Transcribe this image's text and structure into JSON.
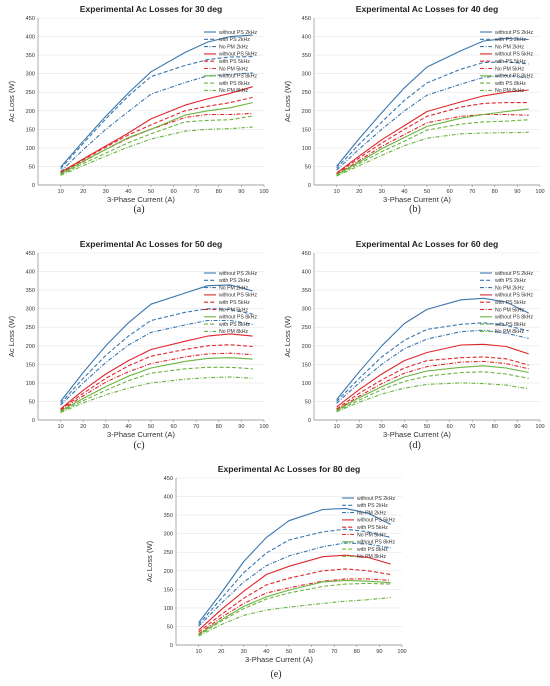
{
  "legend_style": [
    {
      "color": "#3a76ae",
      "dash": "solid"
    },
    {
      "color": "#3a76ae",
      "dash": "dash"
    },
    {
      "color": "#3a76ae",
      "dash": "dashdot"
    },
    {
      "color": "#e0262c",
      "dash": "solid"
    },
    {
      "color": "#e0262c",
      "dash": "dash"
    },
    {
      "color": "#e0262c",
      "dash": "dashdot"
    },
    {
      "color": "#6ab440",
      "dash": "solid"
    },
    {
      "color": "#6ab440",
      "dash": "dash"
    },
    {
      "color": "#6ab440",
      "dash": "dashdot"
    }
  ],
  "captions": [
    "(a)",
    "(b)",
    "(c)",
    "(d)",
    "(e)"
  ],
  "chart_data": [
    {
      "type": "line",
      "title": "Experimental Ac Losses for 30 deg",
      "xlabel": "3-Phase Current (A)",
      "ylabel": "Ac Loss (W)",
      "xlim": [
        0,
        100
      ],
      "ylim": [
        0,
        450
      ],
      "xticks": [
        10,
        20,
        30,
        40,
        50,
        60,
        70,
        80,
        90,
        100
      ],
      "yticks": [
        0,
        50,
        100,
        150,
        200,
        250,
        300,
        350,
        400,
        450
      ],
      "x": [
        10,
        20,
        30,
        40,
        50,
        65,
        75,
        85,
        95
      ],
      "series": [
        {
          "name": "without PS 2kHz",
          "values": [
            48,
            118,
            185,
            248,
            305,
            357,
            385,
            400,
            404
          ]
        },
        {
          "name": "with PS 2kHz",
          "values": [
            44,
            112,
            178,
            240,
            292,
            322,
            338,
            345,
            346
          ]
        },
        {
          "name": "No PM 2kHz",
          "values": [
            36,
            95,
            150,
            198,
            245,
            276,
            294,
            298,
            302
          ]
        },
        {
          "name": "without PS 5kHz",
          "values": [
            34,
            70,
            105,
            140,
            178,
            215,
            232,
            247,
            265
          ]
        },
        {
          "name": "with PS 5kHz",
          "values": [
            32,
            68,
            102,
            135,
            162,
            200,
            212,
            222,
            236
          ]
        },
        {
          "name": "No PM 5kHz",
          "values": [
            30,
            63,
            96,
            126,
            150,
            182,
            190,
            190,
            193
          ]
        },
        {
          "name": "without PS 8kHz",
          "values": [
            30,
            64,
            96,
            128,
            150,
            188,
            200,
            208,
            222
          ]
        },
        {
          "name": "with PS 8kHz",
          "values": [
            28,
            58,
            86,
            114,
            138,
            170,
            174,
            176,
            186
          ]
        },
        {
          "name": "No PM 8kHz",
          "values": [
            26,
            52,
            78,
            102,
            124,
            145,
            150,
            152,
            156
          ]
        }
      ]
    },
    {
      "type": "line",
      "title": "Experimental Ac Losses for 40 deg",
      "xlabel": "3-Phase Current (A)",
      "ylabel": "Ac Loss (W)",
      "xlim": [
        0,
        100
      ],
      "ylim": [
        0,
        450
      ],
      "xticks": [
        10,
        20,
        30,
        40,
        50,
        60,
        70,
        80,
        90,
        100
      ],
      "yticks": [
        0,
        50,
        100,
        150,
        200,
        250,
        300,
        350,
        400,
        450
      ],
      "x": [
        10,
        20,
        30,
        40,
        50,
        65,
        75,
        85,
        95
      ],
      "series": [
        {
          "name": "without PS 2kHz",
          "values": [
            50,
            125,
            195,
            262,
            318,
            362,
            388,
            395,
            392
          ]
        },
        {
          "name": "with PS 2kHz",
          "values": [
            45,
            110,
            170,
            228,
            275,
            312,
            330,
            332,
            326
          ]
        },
        {
          "name": "No PM 2kHz",
          "values": [
            40,
            97,
            150,
            200,
            242,
            272,
            290,
            296,
            288
          ]
        },
        {
          "name": "without PS 5kHz",
          "values": [
            32,
            78,
            122,
            160,
            198,
            224,
            240,
            250,
            256
          ]
        },
        {
          "name": "with PS 5kHz",
          "values": [
            30,
            73,
            113,
            150,
            185,
            210,
            220,
            222,
            222
          ]
        },
        {
          "name": "No PM 5kHz",
          "values": [
            28,
            66,
            104,
            136,
            168,
            185,
            190,
            190,
            188
          ]
        },
        {
          "name": "without PS 8kHz",
          "values": [
            28,
            62,
            98,
            128,
            158,
            180,
            190,
            198,
            205
          ]
        },
        {
          "name": "with PS 8kHz",
          "values": [
            26,
            58,
            90,
            118,
            148,
            164,
            170,
            172,
            176
          ]
        },
        {
          "name": "No PM 8kHz",
          "values": [
            24,
            52,
            80,
            106,
            126,
            138,
            140,
            141,
            142
          ]
        }
      ]
    },
    {
      "type": "line",
      "title": "Experimental Ac Losses for 50 deg",
      "xlabel": "3-Phase Current (A)",
      "ylabel": "Ac Loss (W)",
      "xlim": [
        0,
        100
      ],
      "ylim": [
        0,
        450
      ],
      "xticks": [
        10,
        20,
        30,
        40,
        50,
        60,
        70,
        80,
        90,
        100
      ],
      "yticks": [
        0,
        50,
        100,
        150,
        200,
        250,
        300,
        350,
        400,
        450
      ],
      "x": [
        10,
        20,
        30,
        40,
        50,
        65,
        75,
        85,
        95
      ],
      "series": [
        {
          "name": "without PS 2kHz",
          "values": [
            50,
            128,
            200,
            262,
            312,
            342,
            362,
            364,
            348
          ]
        },
        {
          "name": "with PS 2kHz",
          "values": [
            45,
            112,
            174,
            226,
            268,
            290,
            300,
            298,
            285
          ]
        },
        {
          "name": "No PM 2kHz",
          "values": [
            40,
            100,
            155,
            202,
            236,
            256,
            268,
            268,
            258
          ]
        },
        {
          "name": "without PS 5kHz",
          "values": [
            30,
            80,
            124,
            160,
            190,
            212,
            226,
            232,
            226
          ]
        },
        {
          "name": "with PS 5kHz",
          "values": [
            28,
            72,
            112,
            146,
            172,
            190,
            200,
            203,
            198
          ]
        },
        {
          "name": "No PM 5kHz",
          "values": [
            26,
            65,
            102,
            130,
            152,
            170,
            178,
            180,
            176
          ]
        },
        {
          "name": "without PS 8kHz",
          "values": [
            24,
            58,
            90,
            118,
            140,
            158,
            166,
            168,
            164
          ]
        },
        {
          "name": "with PS 8kHz",
          "values": [
            22,
            52,
            80,
            106,
            126,
            138,
            142,
            142,
            138
          ]
        },
        {
          "name": "No PM 8kHz",
          "values": [
            20,
            46,
            68,
            86,
            100,
            110,
            114,
            116,
            112
          ]
        }
      ]
    },
    {
      "type": "line",
      "title": "Experimental Ac Losses for 60 deg",
      "xlabel": "3-Phase Current (A)",
      "ylabel": "Ac Loss (W)",
      "xlim": [
        0,
        100
      ],
      "ylim": [
        0,
        450
      ],
      "xticks": [
        10,
        20,
        30,
        40,
        50,
        60,
        70,
        80,
        90,
        100
      ],
      "yticks": [
        0,
        50,
        100,
        150,
        200,
        250,
        300,
        350,
        400,
        450
      ],
      "x": [
        10,
        20,
        30,
        40,
        50,
        65,
        75,
        85,
        95
      ],
      "series": [
        {
          "name": "without PS 2kHz",
          "values": [
            55,
            130,
            200,
            260,
            298,
            324,
            328,
            318,
            288
          ]
        },
        {
          "name": "with PS 2kHz",
          "values": [
            50,
            112,
            170,
            215,
            244,
            258,
            262,
            255,
            240
          ]
        },
        {
          "name": "No PM 2kHz",
          "values": [
            45,
            100,
            150,
            192,
            218,
            238,
            242,
            234,
            220
          ]
        },
        {
          "name": "without PS 5kHz",
          "values": [
            35,
            82,
            124,
            160,
            182,
            202,
            204,
            198,
            178
          ]
        },
        {
          "name": "with PS 5kHz",
          "values": [
            30,
            72,
            108,
            140,
            160,
            168,
            170,
            165,
            148
          ]
        },
        {
          "name": "No PM 5kHz",
          "values": [
            28,
            64,
            98,
            126,
            144,
            156,
            158,
            152,
            138
          ]
        },
        {
          "name": "without PS 8kHz",
          "values": [
            26,
            60,
            90,
            116,
            132,
            142,
            146,
            140,
            128
          ]
        },
        {
          "name": "with PS 8kHz",
          "values": [
            24,
            54,
            82,
            104,
            118,
            128,
            130,
            124,
            112
          ]
        },
        {
          "name": "No PM 8kHz",
          "values": [
            22,
            48,
            70,
            86,
            96,
            100,
            98,
            94,
            84
          ]
        }
      ]
    },
    {
      "type": "line",
      "title": "Experimental Ac Losses for 80 deg",
      "xlabel": "3-Phase Current (A)",
      "ylabel": "Ac Loss (W)",
      "xlim": [
        0,
        100
      ],
      "ylim": [
        0,
        450
      ],
      "xticks": [
        10,
        20,
        30,
        40,
        50,
        60,
        70,
        80,
        90,
        100
      ],
      "yticks": [
        0,
        50,
        100,
        150,
        200,
        250,
        300,
        350,
        400,
        450
      ],
      "x": [
        10,
        20,
        30,
        40,
        50,
        65,
        75,
        85,
        95
      ],
      "series": [
        {
          "name": "without PS 2kHz",
          "values": [
            60,
            140,
            225,
            290,
            335,
            365,
            368,
            355,
            325
          ]
        },
        {
          "name": "with PS 2kHz",
          "values": [
            55,
            125,
            195,
            248,
            283,
            305,
            312,
            305,
            290
          ]
        },
        {
          "name": "No PM 2kHz",
          "values": [
            50,
            112,
            170,
            214,
            240,
            265,
            275,
            272,
            262
          ]
        },
        {
          "name": "without PS 5kHz",
          "values": [
            40,
            95,
            145,
            190,
            212,
            238,
            242,
            236,
            218
          ]
        },
        {
          "name": "with PS 5kHz",
          "values": [
            35,
            82,
            126,
            162,
            180,
            200,
            205,
            200,
            190
          ]
        },
        {
          "name": "No PM 5kHz",
          "values": [
            30,
            74,
            112,
            140,
            154,
            172,
            178,
            178,
            174
          ]
        },
        {
          "name": "without PS 8kHz",
          "values": [
            28,
            68,
            104,
            130,
            148,
            170,
            174,
            172,
            168
          ]
        },
        {
          "name": "with PS 8kHz",
          "values": [
            26,
            64,
            98,
            124,
            140,
            158,
            164,
            166,
            164
          ]
        },
        {
          "name": "No PM 8kHz",
          "values": [
            24,
            55,
            80,
            94,
            102,
            112,
            118,
            122,
            128
          ]
        }
      ]
    }
  ]
}
